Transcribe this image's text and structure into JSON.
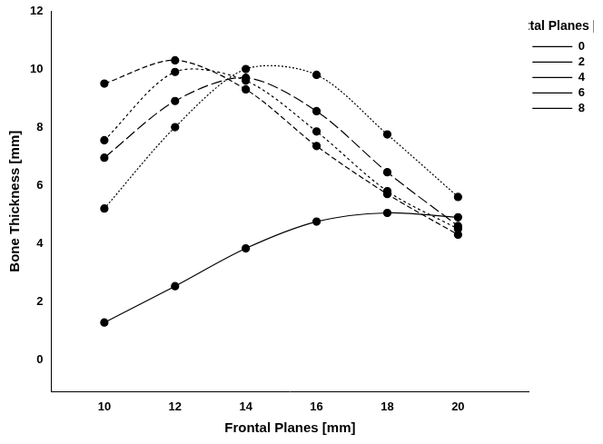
{
  "chart_data": {
    "type": "line",
    "x_label": "Frontal Planes [mm]",
    "y_label": "Bone Thickness [mm]",
    "legend_title": "Sagittal Planes [mm]",
    "legend": "right",
    "grid": false,
    "x": [
      10,
      12,
      14,
      16,
      18,
      20
    ],
    "xlim": [
      8.5,
      22
    ],
    "xticks": [
      10,
      12,
      14,
      16,
      18,
      20
    ],
    "ylim": [
      -1.1,
      12
    ],
    "yticks": [
      0,
      2,
      4,
      6,
      8,
      10,
      12
    ],
    "series": [
      {
        "name": "0",
        "color": "#000000",
        "marker": "circle",
        "line_style": "solid",
        "values": [
          1.28,
          2.53,
          3.83,
          4.75,
          5.05,
          4.9
        ]
      },
      {
        "name": "2",
        "color": "#000000",
        "marker": "circle",
        "line_style": "dashed",
        "values": [
          9.5,
          10.3,
          9.3,
          7.35,
          5.7,
          4.3
        ]
      },
      {
        "name": "4",
        "color": "#000000",
        "marker": "circle",
        "line_style": "short_dashed",
        "values": [
          7.55,
          9.9,
          9.6,
          7.85,
          5.8,
          4.5
        ]
      },
      {
        "name": "6",
        "color": "#000000",
        "marker": "circle",
        "line_style": "long_dashed",
        "values": [
          6.95,
          8.9,
          9.7,
          8.55,
          6.45,
          4.6
        ]
      },
      {
        "name": "8",
        "color": "#000000",
        "marker": "circle",
        "line_style": "dotted",
        "values": [
          5.2,
          8.0,
          10.0,
          9.8,
          7.75,
          5.6
        ]
      }
    ]
  }
}
